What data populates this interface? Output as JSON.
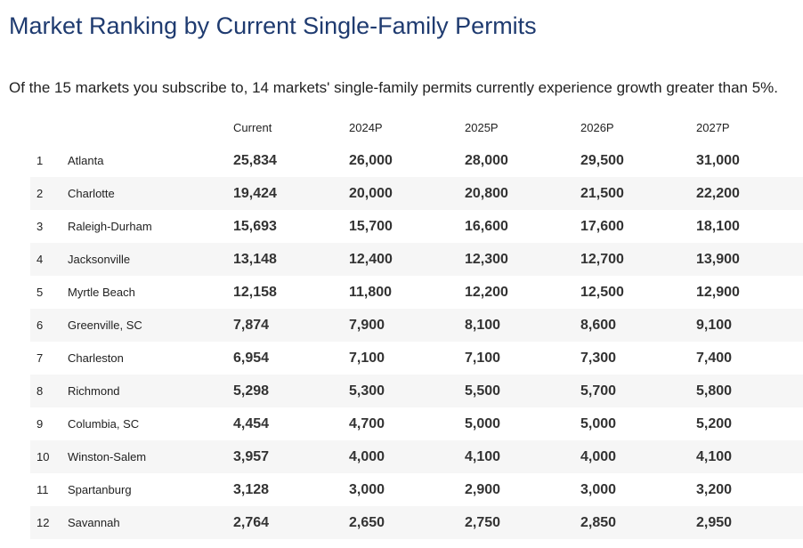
{
  "title": "Market Ranking by Current Single-Family Permits",
  "summary": "Of the 15 markets you subscribe to, 14 markets' single-family permits currently experience growth greater than 5%.",
  "colors": {
    "title": "#1f3b70",
    "row_alt": "#f6f6f6"
  },
  "table": {
    "headers": [
      "",
      "",
      "Current",
      "2024P",
      "2025P",
      "2026P",
      "2027P"
    ],
    "rows": [
      {
        "rank": "1",
        "market": "Atlanta",
        "values": [
          "25,834",
          "26,000",
          "28,000",
          "29,500",
          "31,000"
        ]
      },
      {
        "rank": "2",
        "market": "Charlotte",
        "values": [
          "19,424",
          "20,000",
          "20,800",
          "21,500",
          "22,200"
        ]
      },
      {
        "rank": "3",
        "market": "Raleigh-Durham",
        "values": [
          "15,693",
          "15,700",
          "16,600",
          "17,600",
          "18,100"
        ]
      },
      {
        "rank": "4",
        "market": "Jacksonville",
        "values": [
          "13,148",
          "12,400",
          "12,300",
          "12,700",
          "13,900"
        ]
      },
      {
        "rank": "5",
        "market": "Myrtle Beach",
        "values": [
          "12,158",
          "11,800",
          "12,200",
          "12,500",
          "12,900"
        ]
      },
      {
        "rank": "6",
        "market": "Greenville, SC",
        "values": [
          "7,874",
          "7,900",
          "8,100",
          "8,600",
          "9,100"
        ]
      },
      {
        "rank": "7",
        "market": "Charleston",
        "values": [
          "6,954",
          "7,100",
          "7,100",
          "7,300",
          "7,400"
        ]
      },
      {
        "rank": "8",
        "market": "Richmond",
        "values": [
          "5,298",
          "5,300",
          "5,500",
          "5,700",
          "5,800"
        ]
      },
      {
        "rank": "9",
        "market": "Columbia, SC",
        "values": [
          "4,454",
          "4,700",
          "5,000",
          "5,000",
          "5,200"
        ]
      },
      {
        "rank": "10",
        "market": "Winston-Salem",
        "values": [
          "3,957",
          "4,000",
          "4,100",
          "4,000",
          "4,100"
        ]
      },
      {
        "rank": "11",
        "market": "Spartanburg",
        "values": [
          "3,128",
          "3,000",
          "2,900",
          "3,000",
          "3,200"
        ]
      },
      {
        "rank": "12",
        "market": "Savannah",
        "values": [
          "2,764",
          "2,650",
          "2,750",
          "2,850",
          "2,950"
        ]
      }
    ]
  }
}
